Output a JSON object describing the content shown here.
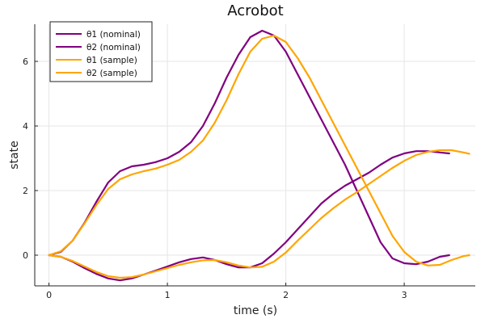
{
  "chart_data": {
    "type": "line",
    "title": "Acrobot",
    "xlabel": "time (s)",
    "ylabel": "state",
    "xlim": [
      -0.12,
      3.6
    ],
    "ylim": [
      -0.95,
      7.15
    ],
    "xticks": [
      0,
      1,
      2,
      3
    ],
    "yticks": [
      0,
      2,
      4,
      6
    ],
    "grid": true,
    "legend_position": "top-left",
    "series": [
      {
        "name": "θ1 (nominal)",
        "color": "#800080",
        "x": [
          0,
          0.1,
          0.2,
          0.3,
          0.4,
          0.5,
          0.6,
          0.7,
          0.8,
          0.9,
          1.0,
          1.1,
          1.2,
          1.3,
          1.4,
          1.5,
          1.6,
          1.7,
          1.8,
          1.9,
          2.0,
          2.1,
          2.2,
          2.3,
          2.4,
          2.5,
          2.6,
          2.7,
          2.8,
          2.9,
          3.0,
          3.1,
          3.2,
          3.3,
          3.38
        ],
        "values": [
          0,
          0.1,
          0.45,
          1.0,
          1.65,
          2.25,
          2.6,
          2.75,
          2.8,
          2.88,
          3.0,
          3.2,
          3.5,
          4.0,
          4.7,
          5.5,
          6.2,
          6.75,
          6.95,
          6.8,
          6.3,
          5.6,
          4.9,
          4.2,
          3.5,
          2.8,
          2.0,
          1.2,
          0.4,
          -0.1,
          -0.25,
          -0.28,
          -0.2,
          -0.05,
          0.0
        ]
      },
      {
        "name": "θ2 (nominal)",
        "color": "#800080",
        "x": [
          0,
          0.1,
          0.2,
          0.3,
          0.4,
          0.5,
          0.6,
          0.7,
          0.8,
          0.9,
          1.0,
          1.1,
          1.2,
          1.3,
          1.4,
          1.5,
          1.6,
          1.7,
          1.8,
          1.9,
          2.0,
          2.1,
          2.2,
          2.3,
          2.4,
          2.5,
          2.6,
          2.7,
          2.8,
          2.9,
          3.0,
          3.1,
          3.2,
          3.3,
          3.38
        ],
        "values": [
          0,
          -0.05,
          -0.2,
          -0.4,
          -0.58,
          -0.72,
          -0.78,
          -0.72,
          -0.6,
          -0.48,
          -0.35,
          -0.22,
          -0.12,
          -0.07,
          -0.15,
          -0.28,
          -0.38,
          -0.38,
          -0.25,
          0.05,
          0.4,
          0.8,
          1.2,
          1.6,
          1.9,
          2.15,
          2.35,
          2.55,
          2.8,
          3.02,
          3.15,
          3.22,
          3.22,
          3.18,
          3.15
        ]
      },
      {
        "name": "θ1 (sample)",
        "color": "#FFA500",
        "x": [
          0,
          0.1,
          0.2,
          0.3,
          0.4,
          0.5,
          0.6,
          0.7,
          0.8,
          0.9,
          1.0,
          1.1,
          1.2,
          1.3,
          1.4,
          1.5,
          1.6,
          1.7,
          1.8,
          1.9,
          2.0,
          2.1,
          2.2,
          2.3,
          2.4,
          2.5,
          2.6,
          2.7,
          2.8,
          2.9,
          3.0,
          3.1,
          3.2,
          3.3,
          3.4,
          3.5,
          3.55
        ],
        "values": [
          0,
          0.12,
          0.45,
          0.98,
          1.55,
          2.05,
          2.35,
          2.5,
          2.6,
          2.68,
          2.8,
          2.95,
          3.2,
          3.55,
          4.1,
          4.8,
          5.6,
          6.3,
          6.7,
          6.8,
          6.6,
          6.1,
          5.5,
          4.8,
          4.1,
          3.4,
          2.7,
          2.0,
          1.3,
          0.6,
          0.1,
          -0.2,
          -0.32,
          -0.3,
          -0.15,
          -0.03,
          0.0
        ]
      },
      {
        "name": "θ2 (sample)",
        "color": "#FFA500",
        "x": [
          0,
          0.1,
          0.2,
          0.3,
          0.4,
          0.5,
          0.6,
          0.7,
          0.8,
          0.9,
          1.0,
          1.1,
          1.2,
          1.3,
          1.4,
          1.5,
          1.6,
          1.7,
          1.8,
          1.9,
          2.0,
          2.1,
          2.2,
          2.3,
          2.4,
          2.5,
          2.6,
          2.7,
          2.8,
          2.9,
          3.0,
          3.1,
          3.2,
          3.3,
          3.4,
          3.5,
          3.55
        ],
        "values": [
          0,
          -0.05,
          -0.18,
          -0.35,
          -0.52,
          -0.65,
          -0.7,
          -0.68,
          -0.6,
          -0.5,
          -0.4,
          -0.3,
          -0.22,
          -0.16,
          -0.15,
          -0.22,
          -0.32,
          -0.38,
          -0.36,
          -0.2,
          0.08,
          0.45,
          0.8,
          1.15,
          1.45,
          1.72,
          1.95,
          2.2,
          2.45,
          2.7,
          2.92,
          3.1,
          3.2,
          3.25,
          3.25,
          3.18,
          3.14
        ]
      }
    ]
  }
}
